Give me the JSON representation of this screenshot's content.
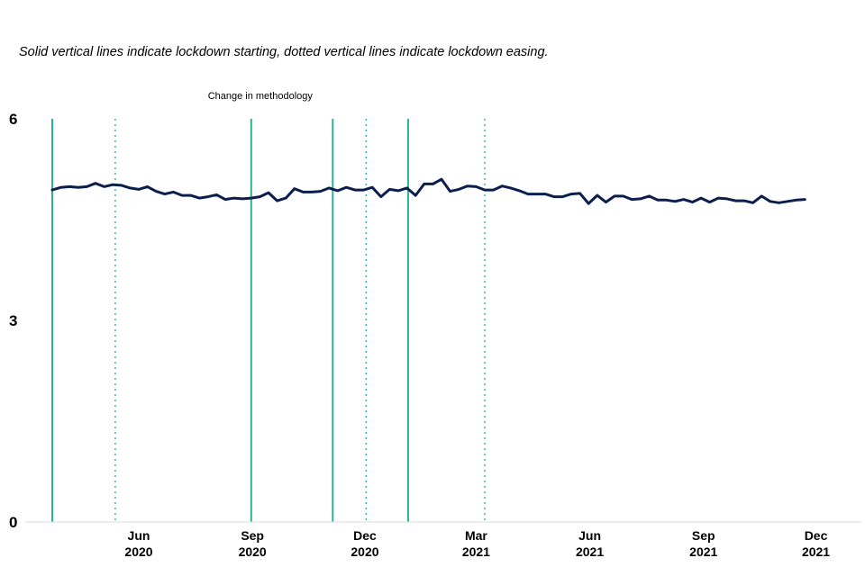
{
  "chart_data": {
    "type": "line",
    "title": "",
    "subtitle": "Solid vertical lines indicate lockdown starting, dotted vertical lines indicate lockdown easing.",
    "xlabel": "",
    "ylabel": "",
    "ylim": [
      0,
      6
    ],
    "yticks": [
      0,
      3,
      6
    ],
    "xlim": [
      "2020-03-23",
      "2021-12-13"
    ],
    "xticks": [
      {
        "date": "2020-06-01",
        "line1": "Jun",
        "line2": "2020"
      },
      {
        "date": "2020-09-01",
        "line1": "Sep",
        "line2": "2020"
      },
      {
        "date": "2020-12-01",
        "line1": "Dec",
        "line2": "2020"
      },
      {
        "date": "2021-03-01",
        "line1": "Mar",
        "line2": "2021"
      },
      {
        "date": "2021-06-01",
        "line1": "Jun",
        "line2": "2021"
      },
      {
        "date": "2021-09-01",
        "line1": "Sep",
        "line2": "2021"
      },
      {
        "date": "2021-12-01",
        "line1": "Dec",
        "line2": "2021"
      }
    ],
    "grid": false,
    "legend": "none",
    "line_color": "#0b1e4d",
    "marker_color": "#2bb39a",
    "annotations": [
      {
        "text": "Change in methodology",
        "date": "2020-08-31"
      }
    ],
    "vertical_lines": [
      {
        "date": "2020-03-23",
        "style": "solid",
        "meaning": "lockdown starting"
      },
      {
        "date": "2020-05-13",
        "style": "dotted",
        "meaning": "lockdown easing"
      },
      {
        "date": "2020-08-31",
        "style": "solid"
      },
      {
        "date": "2020-11-05",
        "style": "solid",
        "meaning": "lockdown starting"
      },
      {
        "date": "2020-12-02",
        "style": "dotted",
        "meaning": "lockdown easing"
      },
      {
        "date": "2021-01-05",
        "style": "solid",
        "meaning": "lockdown starting"
      },
      {
        "date": "2021-03-08",
        "style": "dotted",
        "meaning": "lockdown easing"
      }
    ],
    "series": [
      {
        "x": [
          "2020-03-23",
          "2020-03-30",
          "2020-04-06",
          "2020-04-13",
          "2020-04-20",
          "2020-04-27",
          "2020-05-04",
          "2020-05-11",
          "2020-05-18",
          "2020-05-25",
          "2020-06-01",
          "2020-06-08",
          "2020-06-15",
          "2020-06-22",
          "2020-06-29",
          "2020-07-06",
          "2020-07-13",
          "2020-07-20",
          "2020-07-27",
          "2020-08-03",
          "2020-08-10",
          "2020-08-17",
          "2020-08-24",
          "2020-08-31",
          "2020-09-07",
          "2020-09-14",
          "2020-09-21",
          "2020-09-28",
          "2020-10-05",
          "2020-10-12",
          "2020-10-19",
          "2020-10-26",
          "2020-11-02",
          "2020-11-09",
          "2020-11-16",
          "2020-11-23",
          "2020-11-30",
          "2020-12-07",
          "2020-12-14",
          "2020-12-21",
          "2020-12-28",
          "2021-01-04",
          "2021-01-11",
          "2021-01-18",
          "2021-01-25",
          "2021-02-01",
          "2021-02-08",
          "2021-02-15",
          "2021-02-22",
          "2021-03-01",
          "2021-03-08",
          "2021-03-15",
          "2021-03-22",
          "2021-03-29",
          "2021-04-05",
          "2021-04-12",
          "2021-04-19",
          "2021-04-26",
          "2021-05-03",
          "2021-05-10",
          "2021-05-17",
          "2021-05-24",
          "2021-05-31",
          "2021-06-07",
          "2021-06-14",
          "2021-06-21",
          "2021-06-28",
          "2021-07-05",
          "2021-07-12",
          "2021-07-19",
          "2021-07-26",
          "2021-08-02",
          "2021-08-09",
          "2021-08-16",
          "2021-08-23",
          "2021-08-30",
          "2021-09-06",
          "2021-09-13",
          "2021-09-20",
          "2021-09-27",
          "2021-10-04",
          "2021-10-11",
          "2021-10-18",
          "2021-10-25",
          "2021-11-01",
          "2021-11-08",
          "2021-11-15",
          "2021-11-22"
        ],
        "y": [
          4.94,
          4.98,
          4.99,
          4.98,
          4.99,
          5.04,
          4.99,
          5.02,
          5.01,
          4.97,
          4.95,
          4.99,
          4.92,
          4.88,
          4.91,
          4.86,
          4.86,
          4.82,
          4.84,
          4.87,
          4.8,
          4.82,
          4.81,
          4.82,
          4.84,
          4.9,
          4.78,
          4.82,
          4.96,
          4.91,
          4.91,
          4.92,
          4.97,
          4.93,
          4.98,
          4.94,
          4.94,
          4.98,
          4.84,
          4.95,
          4.93,
          4.97,
          4.86,
          5.03,
          5.03,
          5.1,
          4.92,
          4.95,
          5.0,
          4.99,
          4.94,
          4.94,
          5.0,
          4.97,
          4.93,
          4.88,
          4.88,
          4.88,
          4.84,
          4.84,
          4.88,
          4.89,
          4.74,
          4.86,
          4.76,
          4.85,
          4.85,
          4.8,
          4.81,
          4.85,
          4.79,
          4.79,
          4.77,
          4.8,
          4.76,
          4.82,
          4.76,
          4.82,
          4.81,
          4.78,
          4.78,
          4.75,
          4.85,
          4.77,
          4.75,
          4.77,
          4.79,
          4.8
        ]
      }
    ]
  }
}
